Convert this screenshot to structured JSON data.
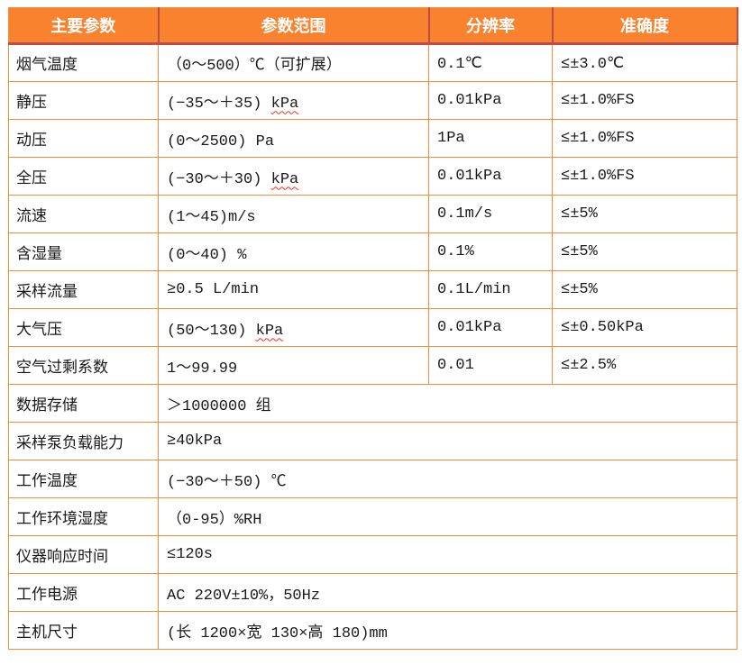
{
  "colors": {
    "header_bg": "#F9822F",
    "header_text": "#FFFFFF",
    "header_divider": "#BE4B48",
    "grid_line": "#F08C3C",
    "body_text": "#1A1A1A",
    "misspell_underline": "#FF2A1A",
    "page_bg": "#FFFFFF"
  },
  "table": {
    "headers": [
      "主要参数",
      "参数范围",
      "分辨率",
      "准确度"
    ],
    "rows": [
      {
        "param": "烟气温度",
        "range": [
          {
            "t": "（0～500）℃（可扩展）"
          }
        ],
        "resolution": "0.1℃",
        "accuracy": "≤±3.0℃",
        "span": false
      },
      {
        "param": "静压",
        "range": [
          {
            "t": "(−35～＋35) "
          },
          {
            "t": "kPa",
            "wavy": true
          }
        ],
        "resolution": "0.01kPa",
        "accuracy": "≤±1.0%FS",
        "span": false
      },
      {
        "param": "动压",
        "range": [
          {
            "t": "(0～2500) Pa"
          }
        ],
        "resolution": "1Pa",
        "accuracy": "≤±1.0%FS",
        "span": false
      },
      {
        "param": "全压",
        "range": [
          {
            "t": "(−30～＋30) "
          },
          {
            "t": "kPa",
            "wavy": true
          }
        ],
        "resolution": "0.01kPa",
        "accuracy": "≤±1.0%FS",
        "span": false
      },
      {
        "param": "流速",
        "range": [
          {
            "t": "(1～45)m/s"
          }
        ],
        "resolution": "0.1m/s",
        "accuracy": "≤±5%",
        "span": false
      },
      {
        "param": "含湿量",
        "range": [
          {
            "t": "(0～40) %"
          }
        ],
        "resolution": "0.1%",
        "accuracy": "≤±5%",
        "span": false
      },
      {
        "param": "采样流量",
        "range": [
          {
            "t": "≥0.5 L/min"
          }
        ],
        "resolution": "0.1L/min",
        "accuracy": "≤±5%",
        "span": false
      },
      {
        "param": "大气压",
        "range": [
          {
            "t": "(50～130) "
          },
          {
            "t": "kPa",
            "wavy": true
          }
        ],
        "resolution": "0.01kPa",
        "accuracy": "≤±0.50kPa",
        "span": false
      },
      {
        "param": "空气过剩系数",
        "range": [
          {
            "t": "1～99.99"
          }
        ],
        "resolution": "0.01",
        "accuracy": "≤±2.5%",
        "span": false
      },
      {
        "param": "数据存储",
        "range": [
          {
            "t": "＞1000000 组"
          }
        ],
        "span": true
      },
      {
        "param": "采样泵负载能力",
        "range": [
          {
            "t": "≥40kPa"
          }
        ],
        "span": true
      },
      {
        "param": "工作温度",
        "range": [
          {
            "t": "(−30～＋50) ℃"
          }
        ],
        "span": true
      },
      {
        "param": "工作环境湿度",
        "range": [
          {
            "t": "（0-95）%RH"
          }
        ],
        "span": true
      },
      {
        "param": "仪器响应时间",
        "range": [
          {
            "t": "≤120s"
          }
        ],
        "span": true
      },
      {
        "param": "工作电源",
        "range": [
          {
            "t": "AC 220V±10%，50Hz"
          }
        ],
        "span": true
      },
      {
        "param": "主机尺寸",
        "range": [
          {
            "t": "(长 1200×宽 130×高 180)mm"
          }
        ],
        "span": true
      }
    ]
  }
}
